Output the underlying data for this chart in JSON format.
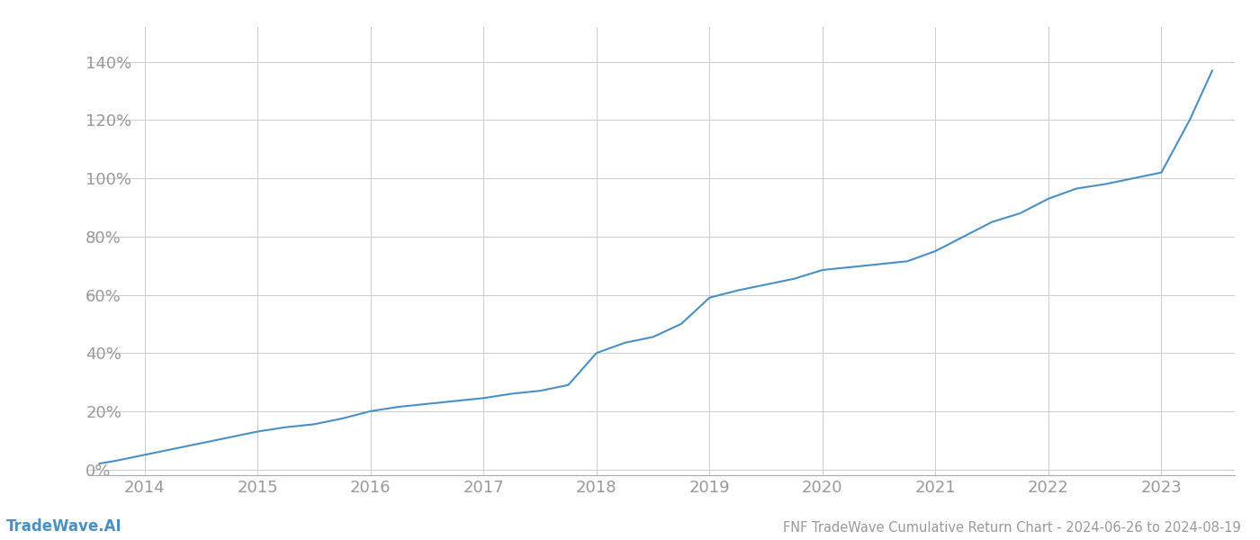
{
  "title": "FNF TradeWave Cumulative Return Chart - 2024-06-26 to 2024-08-19",
  "watermark": "TradeWave.AI",
  "line_color": "#4a90c4",
  "background_color": "#ffffff",
  "grid_color": "#cccccc",
  "x_values": [
    2013.6,
    2013.75,
    2014.0,
    2014.25,
    2014.5,
    2014.75,
    2015.0,
    2015.25,
    2015.5,
    2015.75,
    2016.0,
    2016.25,
    2016.5,
    2016.75,
    2017.0,
    2017.25,
    2017.5,
    2017.75,
    2018.0,
    2018.25,
    2018.5,
    2018.75,
    2019.0,
    2019.25,
    2019.5,
    2019.75,
    2020.0,
    2020.25,
    2020.5,
    2020.75,
    2021.0,
    2021.25,
    2021.5,
    2021.75,
    2022.0,
    2022.25,
    2022.5,
    2022.75,
    2023.0,
    2023.25,
    2023.45
  ],
  "y_values": [
    0.02,
    0.03,
    0.05,
    0.07,
    0.09,
    0.11,
    0.13,
    0.145,
    0.155,
    0.175,
    0.2,
    0.215,
    0.225,
    0.235,
    0.245,
    0.26,
    0.27,
    0.29,
    0.4,
    0.435,
    0.455,
    0.5,
    0.59,
    0.615,
    0.635,
    0.655,
    0.685,
    0.695,
    0.705,
    0.715,
    0.75,
    0.8,
    0.85,
    0.88,
    0.93,
    0.965,
    0.98,
    1.0,
    1.02,
    1.2,
    1.37
  ],
  "xlim": [
    2013.5,
    2023.65
  ],
  "ylim": [
    -0.02,
    1.52
  ],
  "yticks": [
    0.0,
    0.2,
    0.4,
    0.6,
    0.8,
    1.0,
    1.2,
    1.4
  ],
  "ytick_labels": [
    "0%",
    "20%",
    "40%",
    "60%",
    "80%",
    "100%",
    "120%",
    "140%"
  ],
  "xtick_positions": [
    2014,
    2015,
    2016,
    2017,
    2018,
    2019,
    2020,
    2021,
    2022,
    2023
  ],
  "xtick_labels": [
    "2014",
    "2015",
    "2016",
    "2017",
    "2018",
    "2019",
    "2020",
    "2021",
    "2022",
    "2023"
  ],
  "title_fontsize": 10.5,
  "tick_fontsize": 13,
  "watermark_fontsize": 12,
  "line_width": 1.5
}
